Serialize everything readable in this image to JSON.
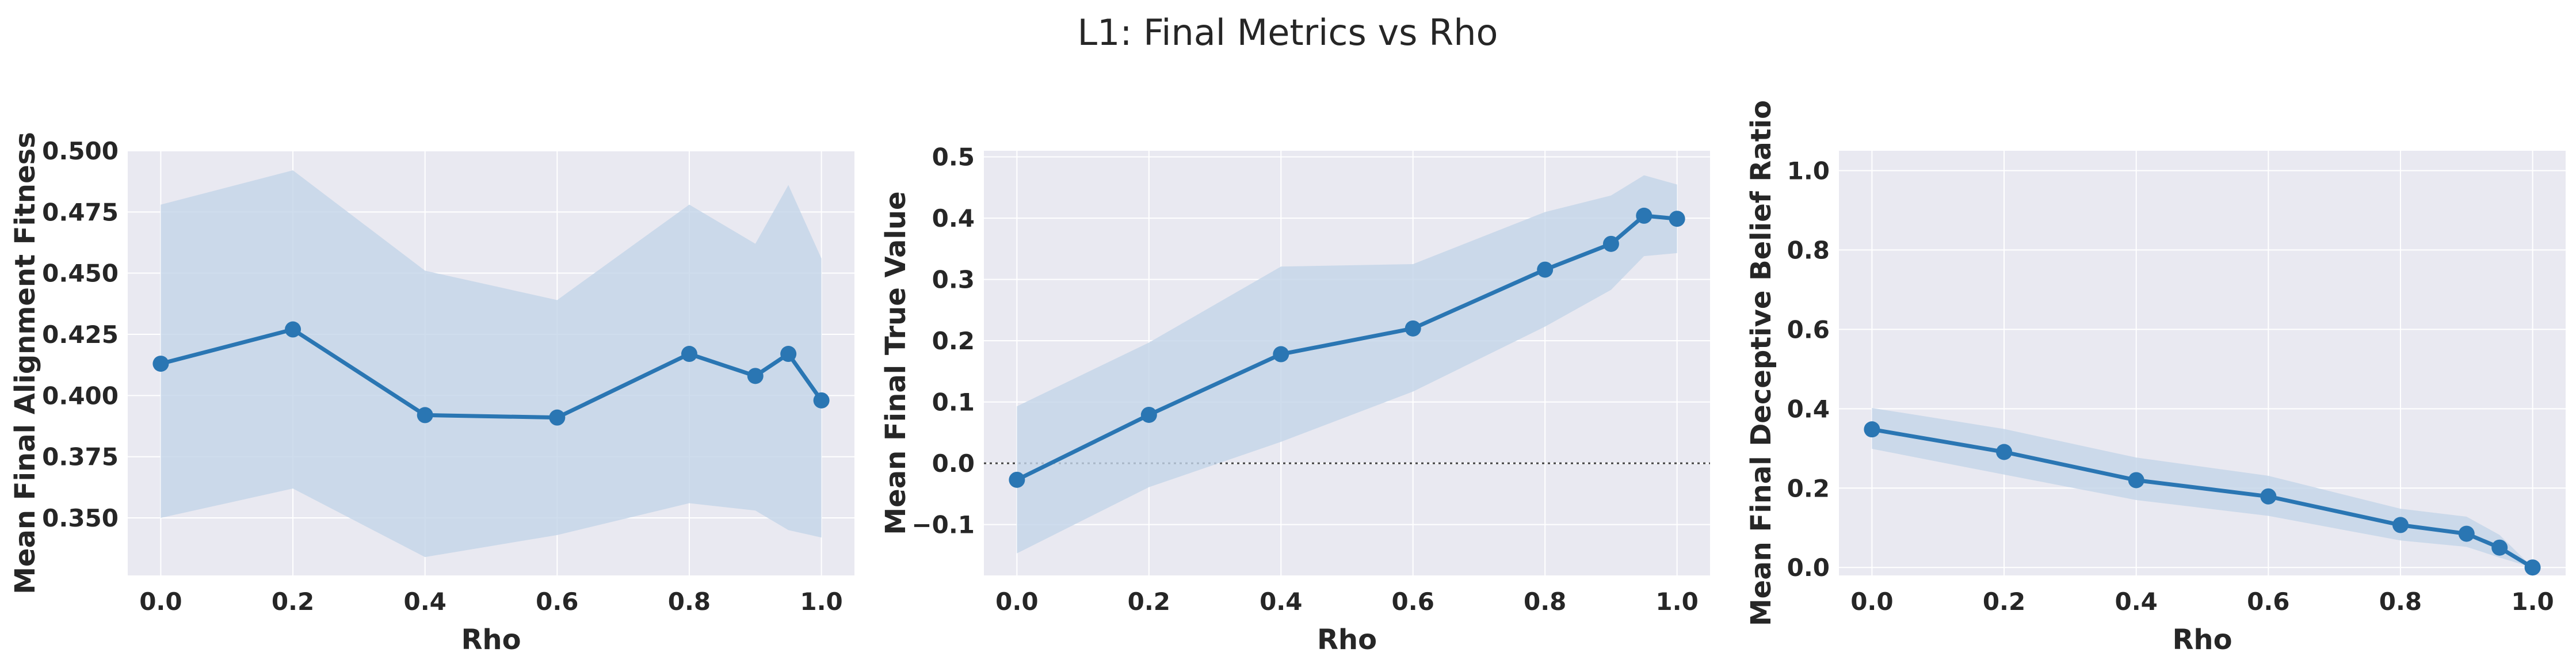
{
  "suptitle": "L1: Final Metrics vs Rho",
  "colors": {
    "line": "#2a76b3",
    "band": "#c3d5e8",
    "plot_bg": "#e9e9f1",
    "grid": "#ffffff",
    "refline": "#444444"
  },
  "chart_data": [
    {
      "type": "line",
      "title": "",
      "xlabel": "Rho",
      "ylabel": "Mean Final Alignment Fitness",
      "x": [
        0.0,
        0.2,
        0.4,
        0.6,
        0.8,
        0.9,
        0.95,
        1.0
      ],
      "y": [
        0.413,
        0.427,
        0.392,
        0.391,
        0.417,
        0.408,
        0.417,
        0.398
      ],
      "band_upper": [
        0.478,
        0.492,
        0.451,
        0.439,
        0.478,
        0.462,
        0.486,
        0.456
      ],
      "band_lower": [
        0.35,
        0.362,
        0.334,
        0.343,
        0.356,
        0.353,
        0.345,
        0.342
      ],
      "xlim": [
        -0.05,
        1.05
      ],
      "ylim": [
        0.3265,
        0.5
      ],
      "xticks": [
        0.0,
        0.2,
        0.4,
        0.6,
        0.8,
        1.0
      ],
      "xtick_labels": [
        "0.0",
        "0.2",
        "0.4",
        "0.6",
        "0.8",
        "1.0"
      ],
      "yticks": [
        0.35,
        0.375,
        0.4,
        0.425,
        0.45,
        0.475,
        0.5
      ],
      "ytick_labels": [
        "0.350",
        "0.375",
        "0.400",
        "0.425",
        "0.450",
        "0.475",
        "0.500"
      ],
      "refline_y": null,
      "grid": true,
      "legend": "none"
    },
    {
      "type": "line",
      "title": "",
      "xlabel": "Rho",
      "ylabel": "Mean Final True Value",
      "x": [
        0.0,
        0.2,
        0.4,
        0.6,
        0.8,
        0.9,
        0.95,
        1.0
      ],
      "y": [
        -0.027,
        0.079,
        0.178,
        0.22,
        0.316,
        0.358,
        0.404,
        0.399
      ],
      "band_upper": [
        0.093,
        0.197,
        0.321,
        0.325,
        0.41,
        0.437,
        0.47,
        0.455
      ],
      "band_lower": [
        -0.147,
        -0.039,
        0.035,
        0.117,
        0.223,
        0.283,
        0.338,
        0.343
      ],
      "xlim": [
        -0.05,
        1.05
      ],
      "ylim": [
        -0.183,
        0.51
      ],
      "xticks": [
        0.0,
        0.2,
        0.4,
        0.6,
        0.8,
        1.0
      ],
      "xtick_labels": [
        "0.0",
        "0.2",
        "0.4",
        "0.6",
        "0.8",
        "1.0"
      ],
      "yticks": [
        -0.1,
        0.0,
        0.1,
        0.2,
        0.3,
        0.4,
        0.5
      ],
      "ytick_labels": [
        "−0.1",
        "0.0",
        "0.1",
        "0.2",
        "0.3",
        "0.4",
        "0.5"
      ],
      "refline_y": 0.0,
      "grid": true,
      "legend": "none"
    },
    {
      "type": "line",
      "title": "",
      "xlabel": "Rho",
      "ylabel": "Mean Final Deceptive Belief Ratio",
      "x": [
        0.0,
        0.2,
        0.4,
        0.6,
        0.8,
        0.9,
        0.95,
        1.0
      ],
      "y": [
        0.348,
        0.291,
        0.22,
        0.179,
        0.107,
        0.085,
        0.05,
        0.0
      ],
      "band_upper": [
        0.402,
        0.349,
        0.277,
        0.231,
        0.148,
        0.128,
        0.082,
        0.0
      ],
      "band_lower": [
        0.299,
        0.234,
        0.17,
        0.13,
        0.068,
        0.052,
        0.025,
        0.0
      ],
      "xlim": [
        -0.05,
        1.05
      ],
      "ylim": [
        -0.02,
        1.05
      ],
      "xticks": [
        0.0,
        0.2,
        0.4,
        0.6,
        0.8,
        1.0
      ],
      "xtick_labels": [
        "0.0",
        "0.2",
        "0.4",
        "0.6",
        "0.8",
        "1.0"
      ],
      "yticks": [
        0.0,
        0.2,
        0.4,
        0.6,
        0.8,
        1.0
      ],
      "ytick_labels": [
        "0.0",
        "0.2",
        "0.4",
        "0.6",
        "0.8",
        "1.0"
      ],
      "refline_y": null,
      "grid": true,
      "legend": "none"
    }
  ]
}
